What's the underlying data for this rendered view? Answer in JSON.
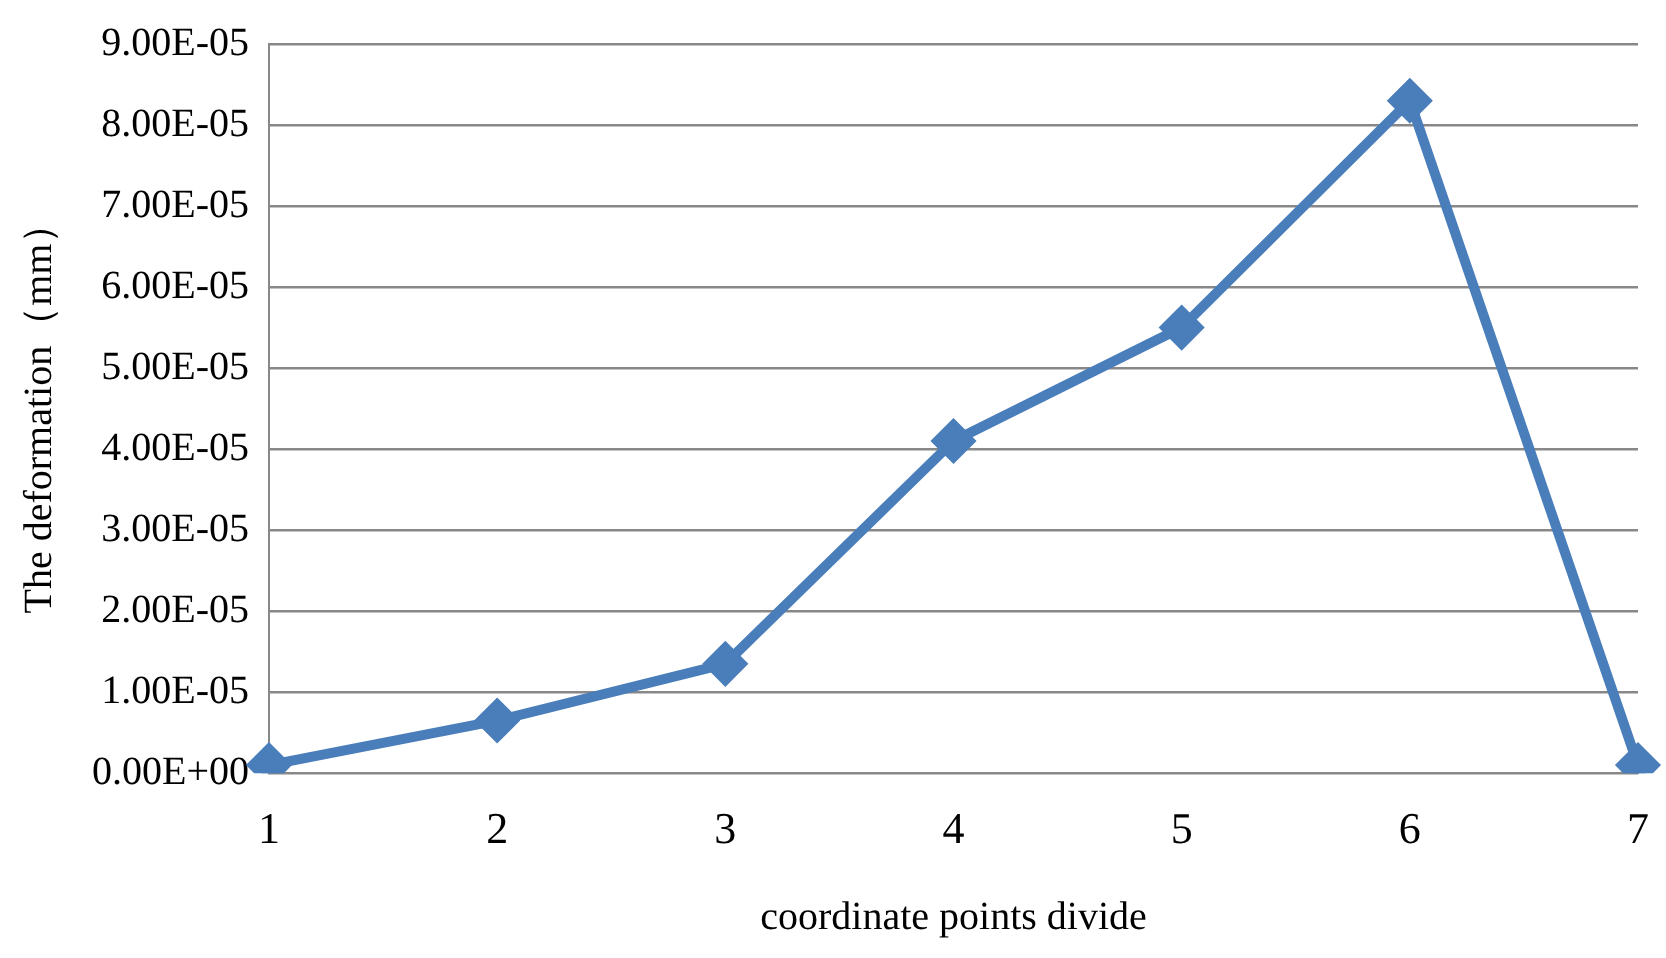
{
  "chart_data": {
    "type": "line",
    "xlabel": "coordinate points divide",
    "ylabel": "The deformation（mm）",
    "categories": [
      "1",
      "2",
      "3",
      "4",
      "5",
      "6",
      "7"
    ],
    "series": [
      {
        "color": "#4a7ebb",
        "values": [
          1e-06,
          6.5e-06,
          1.35e-05,
          4.1e-05,
          5.5e-05,
          8.3e-05,
          1e-06
        ]
      }
    ],
    "ylim": [
      0,
      9e-05
    ],
    "yticks": [
      {
        "value": 0,
        "label": "0.00E+00"
      },
      {
        "value": 1e-05,
        "label": "1.00E-05"
      },
      {
        "value": 2e-05,
        "label": "2.00E-05"
      },
      {
        "value": 3e-05,
        "label": "3.00E-05"
      },
      {
        "value": 4e-05,
        "label": "4.00E-05"
      },
      {
        "value": 5e-05,
        "label": "5.00E-05"
      },
      {
        "value": 6e-05,
        "label": "6.00E-05"
      },
      {
        "value": 7e-05,
        "label": "7.00E-05"
      },
      {
        "value": 8e-05,
        "label": "8.00E-05"
      },
      {
        "value": 9e-05,
        "label": "9.00E-05"
      }
    ],
    "grid": "y",
    "legend": false,
    "marker": "diamond",
    "line_style": "solid"
  }
}
